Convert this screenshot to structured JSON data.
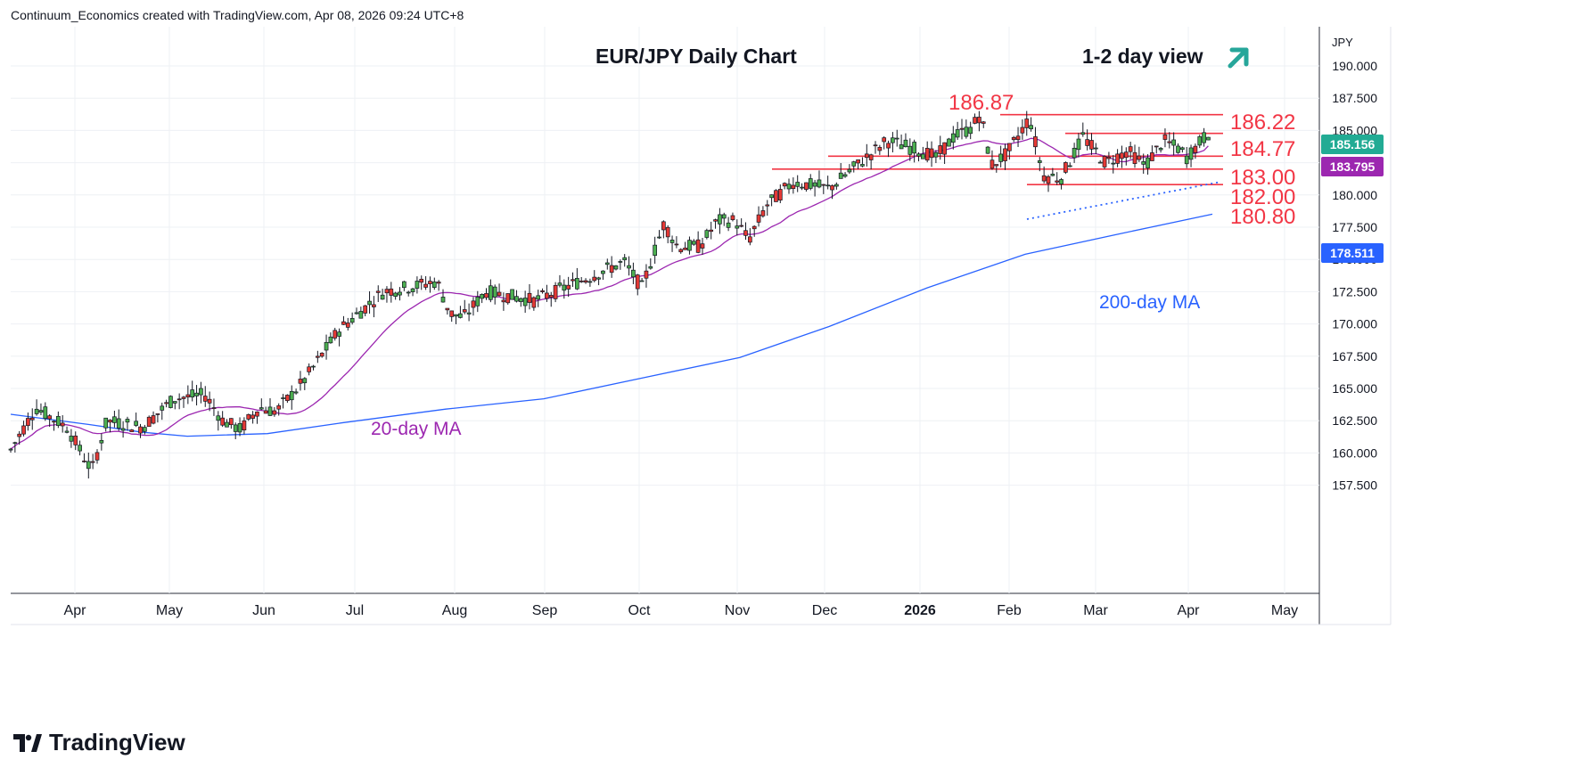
{
  "header": {
    "attribution": "Continuum_Economics created with TradingView.com, Apr 08, 2026 09:24 UTC+8"
  },
  "footer": {
    "logo_text": "TradingView"
  },
  "chart_data": {
    "type": "candlestick",
    "title": "EUR/JPY Daily Chart",
    "view_label": "1-2 day view",
    "view_direction": "up",
    "currency": "JPY",
    "x_ticks": [
      "Apr",
      "May",
      "Jun",
      "Jul",
      "Aug",
      "Sep",
      "Oct",
      "Nov",
      "Dec",
      "2026",
      "Feb",
      "Mar",
      "Apr",
      "May"
    ],
    "y_ticks": [
      "157.500",
      "160.000",
      "162.500",
      "165.000",
      "167.500",
      "170.000",
      "172.500",
      "175.000",
      "177.500",
      "180.000",
      "182.500",
      "185.000",
      "187.500",
      "190.000"
    ],
    "ylim": [
      157.5,
      191.0
    ],
    "last_price": {
      "label": "185.156",
      "value": 185.156,
      "color": "#22ab94"
    },
    "ma20": {
      "name": "20-day MA",
      "last_label": "183.795",
      "last_value": 183.795,
      "color": "#9c27b0"
    },
    "ma200": {
      "name": "200-day MA",
      "last_label": "178.511",
      "last_value": 178.511,
      "color": "#2962ff"
    },
    "levels": [
      {
        "label": "186.87",
        "value": 186.87,
        "kind": "peak"
      },
      {
        "label": "186.22",
        "value": 186.22,
        "kind": "resistance"
      },
      {
        "label": "184.77",
        "value": 184.77,
        "kind": "resistance"
      },
      {
        "label": "183.00",
        "value": 183.0,
        "kind": "support"
      },
      {
        "label": "182.00",
        "value": 182.0,
        "kind": "support"
      },
      {
        "label": "180.80",
        "value": 180.8,
        "kind": "support"
      }
    ],
    "anchors": [
      {
        "x": 10,
        "v": 160.0
      },
      {
        "x": 40,
        "v": 163.5
      },
      {
        "x": 75,
        "v": 162.0
      },
      {
        "x": 103,
        "v": 158.6
      },
      {
        "x": 120,
        "v": 162.5
      },
      {
        "x": 160,
        "v": 162.0
      },
      {
        "x": 195,
        "v": 164.2
      },
      {
        "x": 230,
        "v": 164.5
      },
      {
        "x": 250,
        "v": 162.5
      },
      {
        "x": 270,
        "v": 161.8
      },
      {
        "x": 290,
        "v": 163.5
      },
      {
        "x": 310,
        "v": 163.2
      },
      {
        "x": 340,
        "v": 165.5
      },
      {
        "x": 380,
        "v": 169.5
      },
      {
        "x": 430,
        "v": 172.5
      },
      {
        "x": 470,
        "v": 173.0
      },
      {
        "x": 490,
        "v": 173.3
      },
      {
        "x": 505,
        "v": 170.8
      },
      {
        "x": 520,
        "v": 170.5
      },
      {
        "x": 545,
        "v": 172.5
      },
      {
        "x": 600,
        "v": 171.8
      },
      {
        "x": 640,
        "v": 173.0
      },
      {
        "x": 700,
        "v": 174.8
      },
      {
        "x": 720,
        "v": 172.8
      },
      {
        "x": 735,
        "v": 175.8
      },
      {
        "x": 745,
        "v": 177.8
      },
      {
        "x": 760,
        "v": 176.0
      },
      {
        "x": 785,
        "v": 176.0
      },
      {
        "x": 805,
        "v": 178.0
      },
      {
        "x": 825,
        "v": 178.0
      },
      {
        "x": 840,
        "v": 176.5
      },
      {
        "x": 860,
        "v": 179.2
      },
      {
        "x": 890,
        "v": 181.0
      },
      {
        "x": 930,
        "v": 180.5
      },
      {
        "x": 965,
        "v": 182.5
      },
      {
        "x": 995,
        "v": 184.2
      },
      {
        "x": 1030,
        "v": 183.5
      },
      {
        "x": 1050,
        "v": 182.9
      },
      {
        "x": 1070,
        "v": 184.5
      },
      {
        "x": 1090,
        "v": 185.2
      },
      {
        "x": 1100,
        "v": 186.3
      },
      {
        "x": 1112,
        "v": 182.3
      },
      {
        "x": 1130,
        "v": 183.2
      },
      {
        "x": 1155,
        "v": 186.0
      },
      {
        "x": 1170,
        "v": 181.5
      },
      {
        "x": 1190,
        "v": 181.3
      },
      {
        "x": 1215,
        "v": 184.5
      },
      {
        "x": 1240,
        "v": 182.5
      },
      {
        "x": 1265,
        "v": 183.4
      },
      {
        "x": 1285,
        "v": 182.3
      },
      {
        "x": 1305,
        "v": 184.2
      },
      {
        "x": 1325,
        "v": 183.5
      },
      {
        "x": 1330,
        "v": 182.8
      },
      {
        "x": 1345,
        "v": 184.0
      },
      {
        "x": 1360,
        "v": 185.156
      }
    ]
  }
}
